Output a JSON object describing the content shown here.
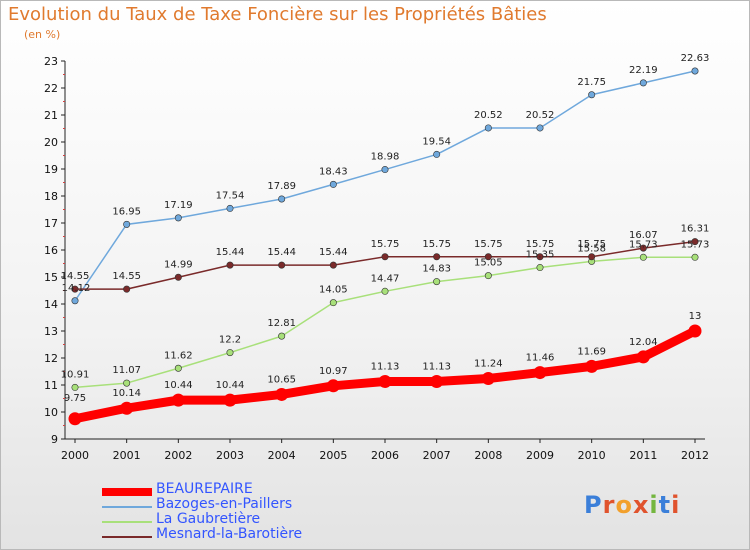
{
  "header": {
    "title": "Evolution du Taux de Taxe Foncière sur les Propriétés Bâties",
    "subtitle": "(en %)"
  },
  "logo": {
    "text": "Proxiti",
    "colors": [
      "#3b7fd9",
      "#e0532d",
      "#f2a02c",
      "#e0532d",
      "#74b63f",
      "#3b7fd9",
      "#e0532d"
    ]
  },
  "chart_data": {
    "type": "line",
    "title": "Evolution du Taux de Taxe Foncière sur les Propriétés Bâties",
    "ylabel": "(en %)",
    "xlabel": "",
    "x": [
      "2000",
      "2001",
      "2002",
      "2003",
      "2004",
      "2005",
      "2006",
      "2007",
      "2008",
      "2009",
      "2010",
      "2011",
      "2012"
    ],
    "ylim": [
      9,
      23
    ],
    "yticks": [
      9,
      10,
      11,
      12,
      13,
      14,
      15,
      16,
      17,
      18,
      19,
      20,
      21,
      22,
      23
    ],
    "grid": false,
    "legend": "bottom-left",
    "series": [
      {
        "name": "BEAUREPAIRE",
        "color": "#ff0000",
        "values": [
          9.75,
          10.14,
          10.44,
          10.44,
          10.65,
          10.97,
          11.13,
          11.13,
          11.24,
          11.46,
          11.69,
          12.04,
          13
        ],
        "labels": [
          "9.75",
          "10.14",
          "10.44",
          "10.44",
          "10.65",
          "10.97",
          "11.13",
          "11.13",
          "11.24",
          "11.46",
          "11.69",
          "12.04",
          "13"
        ]
      },
      {
        "name": "Bazoges-en-Paillers",
        "color": "#6fa8dc",
        "values": [
          14.12,
          16.95,
          17.19,
          17.54,
          17.89,
          18.43,
          18.98,
          19.54,
          20.52,
          20.52,
          21.75,
          22.19,
          22.63
        ],
        "labels": [
          "14.12",
          "16.95",
          "17.19",
          "17.54",
          "17.89",
          "18.43",
          "18.98",
          "19.54",
          "20.52",
          "20.52",
          "21.75",
          "22.19",
          "22.63"
        ]
      },
      {
        "name": "La Gaubretière",
        "color": "#a8e07a",
        "values": [
          10.91,
          11.07,
          11.62,
          12.2,
          12.81,
          14.05,
          14.47,
          14.83,
          15.05,
          15.35,
          15.58,
          15.73,
          15.73
        ],
        "labels": [
          "10.91",
          "11.07",
          "11.62",
          "12.2",
          "12.81",
          "14.05",
          "14.47",
          "14.83",
          "15.05",
          "15.35",
          "15.58",
          "15.73",
          "15.73"
        ]
      },
      {
        "name": "Mesnard-la-Barotière",
        "color": "#7a2a2a",
        "values": [
          14.55,
          14.55,
          14.99,
          15.44,
          15.44,
          15.44,
          15.75,
          15.75,
          15.75,
          15.75,
          15.75,
          16.07,
          16.31
        ],
        "labels": [
          "14.55",
          "14.55",
          "14.99",
          "15.44",
          "15.44",
          "15.44",
          "15.75",
          "15.75",
          "15.75",
          "15.75",
          "15.75",
          "16.07",
          "16.31"
        ]
      }
    ]
  }
}
